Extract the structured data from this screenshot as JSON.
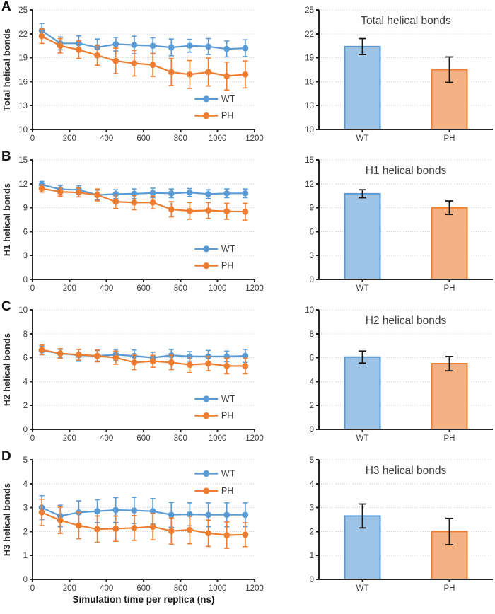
{
  "chart_data": {
    "xlabel": "Simulation time per replica (ns)",
    "colors": {
      "wt": "#5B9BD5",
      "ph": "#ED7D31",
      "wt_bar_fill": "#9DC3E6",
      "ph_bar_fill": "#F4B183",
      "grid": "#c8c8c8",
      "axis": "#262626",
      "tick_text": "#3a3a3a",
      "bar_error": "#1a1a1a"
    },
    "panels": [
      {
        "letter": "A",
        "line": {
          "type": "line",
          "ylabel": "Total helical bonds",
          "ylim": [
            10,
            25
          ],
          "yticks": [
            10,
            13,
            16,
            19,
            22,
            25
          ],
          "xlim": [
            0,
            1200
          ],
          "xticks": [
            0,
            200,
            400,
            600,
            800,
            1000,
            1200
          ],
          "x": [
            50,
            150,
            250,
            350,
            450,
            550,
            650,
            750,
            850,
            950,
            1050,
            1150
          ],
          "legend_pos": "lower-right",
          "series": [
            {
              "name": "WT",
              "values": [
                22.4,
                20.8,
                20.8,
                20.3,
                20.7,
                20.6,
                20.5,
                20.3,
                20.5,
                20.4,
                20.1,
                20.2
              ],
              "errors": [
                0.9,
                0.8,
                0.95,
                1.05,
                0.85,
                1.1,
                1.0,
                1.05,
                0.8,
                1.0,
                1.0,
                1.05
              ]
            },
            {
              "name": "PH",
              "values": [
                21.7,
                20.5,
                20.0,
                19.3,
                18.6,
                18.3,
                18.1,
                17.2,
                16.9,
                17.2,
                16.7,
                16.9
              ],
              "errors": [
                0.9,
                0.9,
                1.1,
                1.25,
                1.6,
                1.6,
                1.45,
                1.7,
                1.75,
                1.75,
                1.75,
                1.7
              ]
            }
          ]
        },
        "bar": {
          "type": "bar",
          "title": "Total helical bonds",
          "categories": [
            "WT",
            "PH"
          ],
          "values": [
            20.4,
            17.5
          ],
          "errors": [
            1.0,
            1.6
          ],
          "ylim": [
            10,
            25
          ],
          "yticks": [
            10,
            13,
            16,
            19,
            22,
            25
          ]
        }
      },
      {
        "letter": "B",
        "line": {
          "type": "line",
          "ylabel": "H1 helical bonds",
          "ylim": [
            0,
            15
          ],
          "yticks": [
            0,
            3,
            6,
            9,
            12,
            15
          ],
          "xlim": [
            0,
            1200
          ],
          "xticks": [
            0,
            200,
            400,
            600,
            800,
            1000,
            1200
          ],
          "x": [
            50,
            150,
            250,
            350,
            450,
            550,
            650,
            750,
            850,
            950,
            1050,
            1150
          ],
          "legend_pos": "lower-right",
          "series": [
            {
              "name": "WT",
              "values": [
                11.9,
                11.3,
                11.25,
                10.6,
                10.7,
                10.75,
                10.85,
                10.8,
                10.9,
                10.7,
                10.8,
                10.8
              ],
              "errors": [
                0.4,
                0.5,
                0.5,
                0.6,
                0.55,
                0.6,
                0.6,
                0.55,
                0.5,
                0.55,
                0.55,
                0.55
              ]
            },
            {
              "name": "PH",
              "values": [
                11.4,
                11.0,
                10.9,
                10.6,
                9.75,
                9.65,
                9.65,
                8.8,
                8.6,
                8.65,
                8.55,
                8.5
              ],
              "errors": [
                0.45,
                0.55,
                0.55,
                0.75,
                0.85,
                0.9,
                0.8,
                0.95,
                1.05,
                1.0,
                1.0,
                1.05
              ]
            }
          ]
        },
        "bar": {
          "type": "bar",
          "title": "H1 helical bonds",
          "categories": [
            "WT",
            "PH"
          ],
          "values": [
            10.75,
            9.0
          ],
          "errors": [
            0.5,
            0.85
          ],
          "ylim": [
            0,
            15
          ],
          "yticks": [
            0,
            3,
            6,
            9,
            12,
            15
          ]
        }
      },
      {
        "letter": "C",
        "line": {
          "type": "line",
          "ylabel": "H2 helical bonds",
          "ylim": [
            0,
            10
          ],
          "yticks": [
            0,
            2,
            4,
            6,
            8,
            10
          ],
          "xlim": [
            0,
            1200
          ],
          "xticks": [
            0,
            200,
            400,
            600,
            800,
            1000,
            1200
          ],
          "x": [
            50,
            150,
            250,
            350,
            450,
            550,
            650,
            750,
            850,
            950,
            1050,
            1150
          ],
          "legend_pos": "lower-right",
          "series": [
            {
              "name": "WT",
              "values": [
                6.6,
                6.35,
                6.2,
                6.15,
                6.25,
                6.15,
                6.0,
                6.2,
                6.1,
                6.1,
                6.1,
                6.15
              ],
              "errors": [
                0.35,
                0.35,
                0.5,
                0.45,
                0.45,
                0.5,
                0.45,
                0.5,
                0.4,
                0.5,
                0.45,
                0.55
              ]
            },
            {
              "name": "PH",
              "values": [
                6.65,
                6.35,
                6.25,
                6.15,
                6.0,
                5.6,
                5.7,
                5.6,
                5.4,
                5.5,
                5.3,
                5.3
              ],
              "errors": [
                0.4,
                0.4,
                0.45,
                0.5,
                0.55,
                0.6,
                0.5,
                0.6,
                0.65,
                0.6,
                0.65,
                0.65
              ]
            }
          ]
        },
        "bar": {
          "type": "bar",
          "title": "H2 helical bonds",
          "categories": [
            "WT",
            "PH"
          ],
          "values": [
            6.05,
            5.5
          ],
          "errors": [
            0.5,
            0.6
          ],
          "ylim": [
            0,
            10
          ],
          "yticks": [
            0,
            2,
            4,
            6,
            8,
            10
          ]
        }
      },
      {
        "letter": "D",
        "line": {
          "type": "line",
          "ylabel": "H3 helical bonds",
          "ylim": [
            0,
            5
          ],
          "yticks": [
            0,
            1,
            2,
            3,
            4,
            5
          ],
          "xlim": [
            0,
            1200
          ],
          "xticks": [
            0,
            200,
            400,
            600,
            800,
            1000,
            1200
          ],
          "x": [
            50,
            150,
            250,
            350,
            450,
            550,
            650,
            750,
            850,
            950,
            1050,
            1150
          ],
          "legend_pos": "upper-right",
          "series": [
            {
              "name": "WT",
              "values": [
                3.0,
                2.65,
                2.8,
                2.85,
                2.9,
                2.88,
                2.85,
                2.7,
                2.72,
                2.7,
                2.7,
                2.7
              ],
              "errors": [
                0.5,
                0.45,
                0.48,
                0.48,
                0.52,
                0.55,
                0.53,
                0.52,
                0.48,
                0.5,
                0.5,
                0.5
              ]
            },
            {
              "name": "PH",
              "values": [
                2.8,
                2.47,
                2.25,
                2.1,
                2.12,
                2.15,
                2.2,
                2.02,
                2.07,
                1.93,
                1.85,
                1.87
              ],
              "errors": [
                0.55,
                0.55,
                0.55,
                0.55,
                0.53,
                0.52,
                0.55,
                0.55,
                0.58,
                0.55,
                0.55,
                0.5
              ]
            }
          ]
        },
        "bar": {
          "type": "bar",
          "title": "H3 helical bonds",
          "categories": [
            "WT",
            "PH"
          ],
          "values": [
            2.65,
            2.0
          ],
          "errors": [
            0.5,
            0.55
          ],
          "ylim": [
            0,
            5
          ],
          "yticks": [
            0,
            1,
            2,
            3,
            4,
            5
          ]
        }
      }
    ]
  }
}
